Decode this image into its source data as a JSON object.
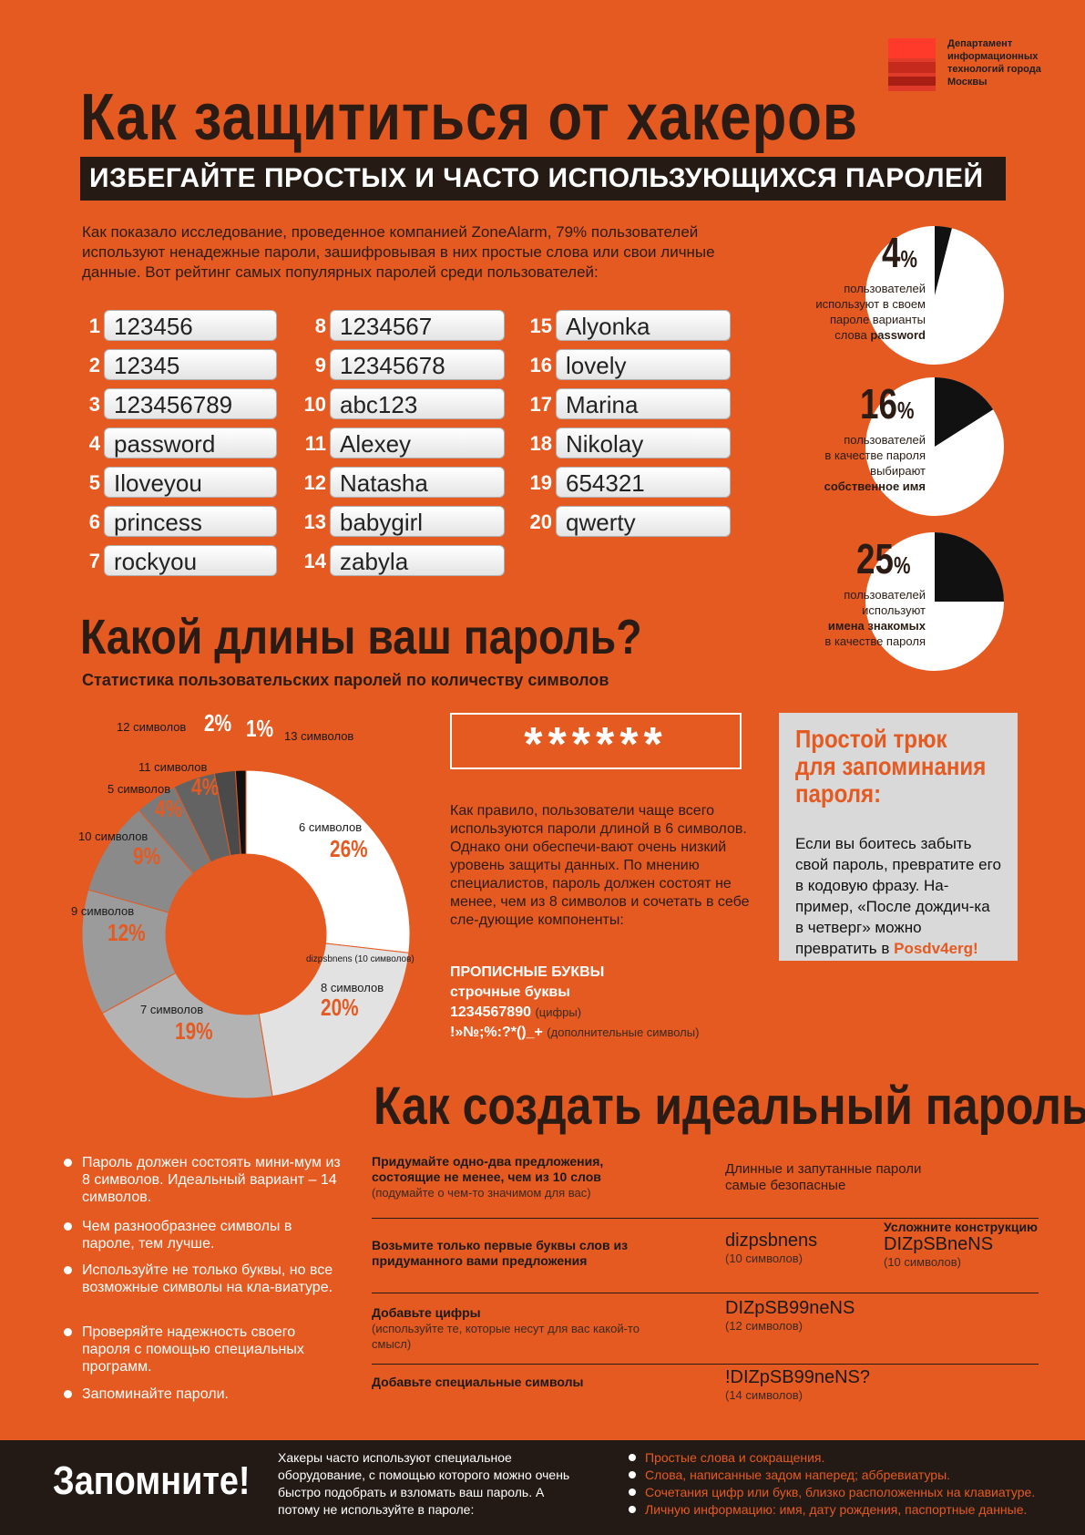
{
  "logo": {
    "text": "Департамент информационных технологий города Москвы"
  },
  "title": "Как защититься от хакеров",
  "subtitle": "ИЗБЕГАЙТЕ ПРОСТЫХ И ЧАСТО ИСПОЛЬЗУЮЩИХСЯ ПАРОЛЕЙ",
  "intro": "Как показало исследование, проведенное компанией ZoneAlarm, 79% пользователей используют ненадежные пароли, зашифровывая в них простые слова или свои личные данные.  Вот рейтинг самых популярных паролей среди пользователей:",
  "passwords": [
    {
      "n": "1",
      "v": "123456"
    },
    {
      "n": "2",
      "v": "12345"
    },
    {
      "n": "3",
      "v": "123456789"
    },
    {
      "n": "4",
      "v": "password"
    },
    {
      "n": "5",
      "v": "Iloveyou"
    },
    {
      "n": "6",
      "v": "princess"
    },
    {
      "n": "7",
      "v": "rockyou"
    },
    {
      "n": "8",
      "v": "1234567"
    },
    {
      "n": "9",
      "v": "12345678"
    },
    {
      "n": "10",
      "v": "abc123"
    },
    {
      "n": "11",
      "v": "Alexey"
    },
    {
      "n": "12",
      "v": "Natasha"
    },
    {
      "n": "13",
      "v": "babygirl"
    },
    {
      "n": "14",
      "v": "zabyla"
    },
    {
      "n": "15",
      "v": "Alyonka"
    },
    {
      "n": "16",
      "v": "lovely"
    },
    {
      "n": "17",
      "v": "Marina"
    },
    {
      "n": "18",
      "v": "Nikolay"
    },
    {
      "n": "19",
      "v": "654321"
    },
    {
      "n": "20",
      "v": "qwerty"
    }
  ],
  "stat_pies": [
    {
      "value": 4,
      "pct": "4",
      "note_a": "пользователей",
      "note_b": "используют в своем",
      "note_c": "пароле варианты",
      "note_d": "слова",
      "note_bold": "password"
    },
    {
      "value": 16,
      "pct": "16",
      "note_a": "пользователей",
      "note_b": "в качестве пароля",
      "note_c": "выбирают",
      "note_bold": "собственное имя"
    },
    {
      "value": 25,
      "pct": "25",
      "note_a": "пользователей",
      "note_b": "используют",
      "note_bold": "имена знакомых",
      "note_c": "в качестве пароля"
    }
  ],
  "pct_sign": "%",
  "section2": {
    "title": "Какой длины ваш пароль?",
    "subtitle": "Статистика пользовательских паролей по количеству символов"
  },
  "chart_data": {
    "type": "pie",
    "categories": [
      "6 символов",
      "8 символов",
      "7 символов",
      "9 символов",
      "10 символов",
      "5 символов",
      "11 символов",
      "12 символов",
      "13 символов"
    ],
    "values": [
      26,
      20,
      19,
      12,
      9,
      4,
      4,
      2,
      1
    ],
    "labels_pct": [
      "26%",
      "20%",
      "19%",
      "12%",
      "9%",
      "4%",
      "4%",
      "2%",
      "1%"
    ],
    "inner_note": "dizpsbnens (10 символов)"
  },
  "stars": "******",
  "midtext": "Как правило, пользователи чаще всего используются пароли длиной в 6 символов. Однако они обеспечи-вают очень низкий уровень защиты данных. По мнению специалистов, пароль должен состоят не менее, чем из 8 символов и сочетать в себе сле-дующие компоненты:",
  "components": {
    "upper": "ПРОПИСНЫЕ БУКВЫ",
    "lower": "строчные буквы",
    "digits": "1234567890",
    "digits_note": "(цифры)",
    "special": "!»№;%:?*()_+",
    "special_note": "(дополнительные символы)"
  },
  "trick": {
    "title_1": "Простой трюк",
    "title_2": "для запоминания",
    "title_3": "пароля:",
    "body": "Если вы боитесь забыть свой пароль, превратите его в кодовую фразу. На-пример, «После дождич-ка в четверг» можно превратить в",
    "accent": "Posdv4erg!"
  },
  "section3": {
    "title": "Как создать идеальный пароль?"
  },
  "bullets": [
    "Пароль должен состоять мини-мум  из 8 символов. Идеальный вариант – 14 символов.",
    "Чем разнообразнее символы в пароле, тем лучше.",
    "Используйте не только буквы, но все возможные символы на кла-виатуре.",
    "Проверяйте надежность своего пароля с помощью специальных программ.",
    "Запоминайте пароли."
  ],
  "steps": [
    {
      "l": "Придумайте  одно-два предложения, состоящие не менее, чем из 10 слов",
      "l_note": "(подумайте о чем-то значимом для вас)",
      "m": "Длинные и запутанные пароли самые безопасные"
    },
    {
      "l": "Возьмите только первые буквы слов из придуманного вами предложения",
      "m": "dizpsbnens",
      "m_note": "(10 символов)",
      "r_title": "Усложните конструкцию",
      "r": "DIZpSBneNS",
      "r_note": "(10 символов)"
    },
    {
      "l": "Добавьте цифры",
      "l_note": "(используйте те, которые несут для вас какой-то смысл)",
      "m": "DIZpSB99neNS",
      "m_note": "(12 символов)"
    },
    {
      "l": "Добавьте специальные символы",
      "m": "!DIZpSB99neNS?",
      "m_note": "(14 символов)"
    }
  ],
  "footer": {
    "title": "Запомните!",
    "mid": "Хакеры часто используют специальное оборудование, с помощью которого можно очень быстро подобрать и взломать ваш пароль. А потому не используйте в пароле:",
    "list": [
      "Простые слова и сокращения.",
      "Слова, написанные задом наперед; аббревиатуры.",
      "Сочетания цифр или букв, близко расположенных  на клавиатуре.",
      "Личную информацию: имя, дату рождения, паспортные данные."
    ]
  }
}
